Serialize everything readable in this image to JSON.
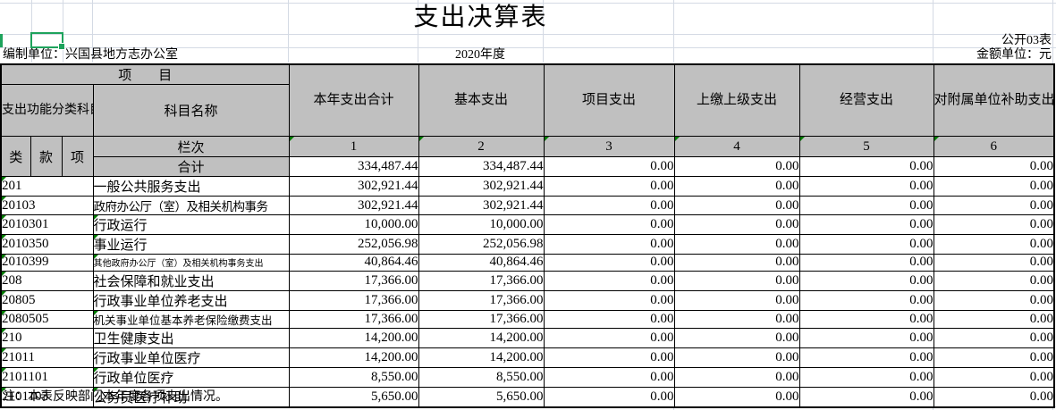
{
  "title": "支出决算表",
  "top": {
    "table_code": "公开03表",
    "unit_label": "编制单位：兴国县地方志办公室",
    "year": "2020年度",
    "amount_unit": "金额单位：元"
  },
  "header": {
    "item_label": "项　　目",
    "code_header": "支出功能分类科目编码",
    "subject_name": "科目名称",
    "sub_cols": {
      "lei": "类",
      "kuan": "款",
      "xiang": "项",
      "lanci": "栏次"
    },
    "columns": [
      "本年支出合计",
      "基本支出",
      "项目支出",
      "上缴上级支出",
      "经营支出",
      "对附属单位补助支出"
    ],
    "col_numbers": [
      "1",
      "2",
      "3",
      "4",
      "5",
      "6"
    ]
  },
  "table": {
    "total_row": {
      "label": "合计",
      "values": [
        "334,487.44",
        "334,487.44",
        "0.00",
        "0.00",
        "0.00",
        "0.00"
      ]
    },
    "rows": [
      {
        "code": "201",
        "name": "一般公共服务支出",
        "name_style": "",
        "name_indicator": false,
        "values": [
          "302,921.44",
          "302,921.44",
          "0.00",
          "0.00",
          "0.00",
          "0.00"
        ]
      },
      {
        "code": "20103",
        "name": "政府办公厅（室）及相关机构事务",
        "name_style": "tight",
        "name_indicator": false,
        "values": [
          "302,921.44",
          "302,921.44",
          "0.00",
          "0.00",
          "0.00",
          "0.00"
        ]
      },
      {
        "code": "2010301",
        "name": "行政运行",
        "name_style": "indent",
        "name_indicator": true,
        "values": [
          "10,000.00",
          "10,000.00",
          "0.00",
          "0.00",
          "0.00",
          "0.00"
        ]
      },
      {
        "code": "2010350",
        "name": "事业运行",
        "name_style": "indent",
        "name_indicator": true,
        "values": [
          "252,056.98",
          "252,056.98",
          "0.00",
          "0.00",
          "0.00",
          "0.00"
        ]
      },
      {
        "code": "2010399",
        "name": "其他政府办公厅（室）及相关机构事务支出",
        "name_style": "small",
        "name_indicator": true,
        "values": [
          "40,864.46",
          "40,864.46",
          "0.00",
          "0.00",
          "0.00",
          "0.00"
        ]
      },
      {
        "code": "208",
        "name": "社会保障和就业支出",
        "name_style": "",
        "name_indicator": false,
        "values": [
          "17,366.00",
          "17,366.00",
          "0.00",
          "0.00",
          "0.00",
          "0.00"
        ]
      },
      {
        "code": "20805",
        "name": "行政事业单位养老支出",
        "name_style": "",
        "name_indicator": false,
        "values": [
          "17,366.00",
          "17,366.00",
          "0.00",
          "0.00",
          "0.00",
          "0.00"
        ]
      },
      {
        "code": "2080505",
        "name": "机关事业单位基本养老保险缴费支出",
        "name_style": "smallish",
        "name_indicator": true,
        "values": [
          "17,366.00",
          "17,366.00",
          "0.00",
          "0.00",
          "0.00",
          "0.00"
        ]
      },
      {
        "code": "210",
        "name": "卫生健康支出",
        "name_style": "",
        "name_indicator": false,
        "values": [
          "14,200.00",
          "14,200.00",
          "0.00",
          "0.00",
          "0.00",
          "0.00"
        ]
      },
      {
        "code": "21011",
        "name": "行政事业单位医疗",
        "name_style": "",
        "name_indicator": false,
        "values": [
          "14,200.00",
          "14,200.00",
          "0.00",
          "0.00",
          "0.00",
          "0.00"
        ]
      },
      {
        "code": "2101101",
        "name": "行政单位医疗",
        "name_style": "indent",
        "name_indicator": true,
        "values": [
          "8,550.00",
          "8,550.00",
          "0.00",
          "0.00",
          "0.00",
          "0.00"
        ]
      },
      {
        "code": "2101103",
        "name": "公务员医疗补助",
        "name_style": "indent",
        "name_indicator": true,
        "values": [
          "5,650.00",
          "5,650.00",
          "0.00",
          "0.00",
          "0.00",
          "0.00"
        ]
      }
    ]
  },
  "note": "注：本表反映部门本年度各项支出情况。",
  "icons": {
    "error_indicator": "green-corner-triangle",
    "fill_handle": "green-square"
  },
  "colors": {
    "header_bg": "#c0c0c0",
    "selection_green": "#1ea35c",
    "indicator_green": "#007a00",
    "gridline": "#d4dae4",
    "border": "#000000"
  }
}
